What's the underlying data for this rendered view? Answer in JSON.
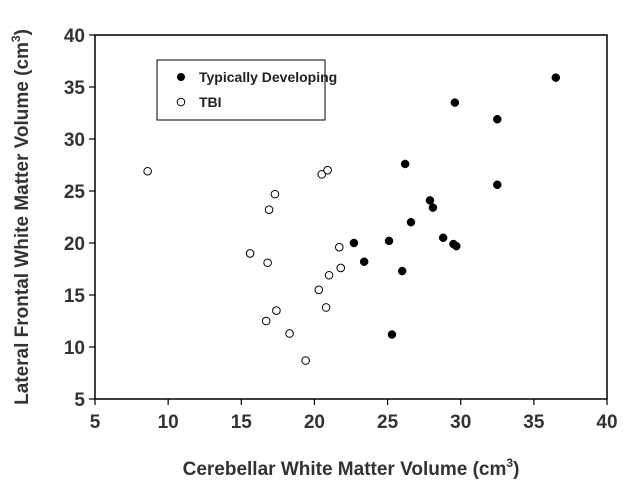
{
  "chart_data": {
    "type": "scatter",
    "xlabel": "Cerebellar White Matter Volume (cm",
    "xlabel_sup": "3",
    "xlabel_end": ")",
    "ylabel": "Lateral Frontal White Matter Volume (cm",
    "ylabel_sup": "3",
    "ylabel_end": ")",
    "xlim": [
      5,
      40
    ],
    "ylim": [
      5,
      40
    ],
    "xticks": [
      "5",
      "10",
      "15",
      "20",
      "25",
      "30",
      "35",
      "40"
    ],
    "yticks": [
      "5",
      "10",
      "15",
      "20",
      "25",
      "30",
      "35",
      "40"
    ],
    "grid": false,
    "legend_position": "top-left",
    "series": [
      {
        "name": "Typically Developing",
        "marker": "filled-circle",
        "color": "#000000",
        "points": [
          [
            22.7,
            20.0
          ],
          [
            23.4,
            18.2
          ],
          [
            25.1,
            20.2
          ],
          [
            25.3,
            11.2
          ],
          [
            26.0,
            17.3
          ],
          [
            26.2,
            27.6
          ],
          [
            26.6,
            22.0
          ],
          [
            27.9,
            24.1
          ],
          [
            28.1,
            23.4
          ],
          [
            28.8,
            20.5
          ],
          [
            29.5,
            19.9
          ],
          [
            29.7,
            19.7
          ],
          [
            29.6,
            33.5
          ],
          [
            32.5,
            31.9
          ],
          [
            32.5,
            25.6
          ],
          [
            36.5,
            35.9
          ]
        ]
      },
      {
        "name": "TBI",
        "marker": "open-circle",
        "color": "#000000",
        "points": [
          [
            8.6,
            26.9
          ],
          [
            15.6,
            19.0
          ],
          [
            16.7,
            12.5
          ],
          [
            16.8,
            18.1
          ],
          [
            16.9,
            23.2
          ],
          [
            17.3,
            24.7
          ],
          [
            17.4,
            13.5
          ],
          [
            18.3,
            11.3
          ],
          [
            19.4,
            8.7
          ],
          [
            20.3,
            15.5
          ],
          [
            20.5,
            26.6
          ],
          [
            20.8,
            13.8
          ],
          [
            20.9,
            27.0
          ],
          [
            21.0,
            16.9
          ],
          [
            21.7,
            19.6
          ],
          [
            21.8,
            17.6
          ]
        ]
      }
    ]
  }
}
